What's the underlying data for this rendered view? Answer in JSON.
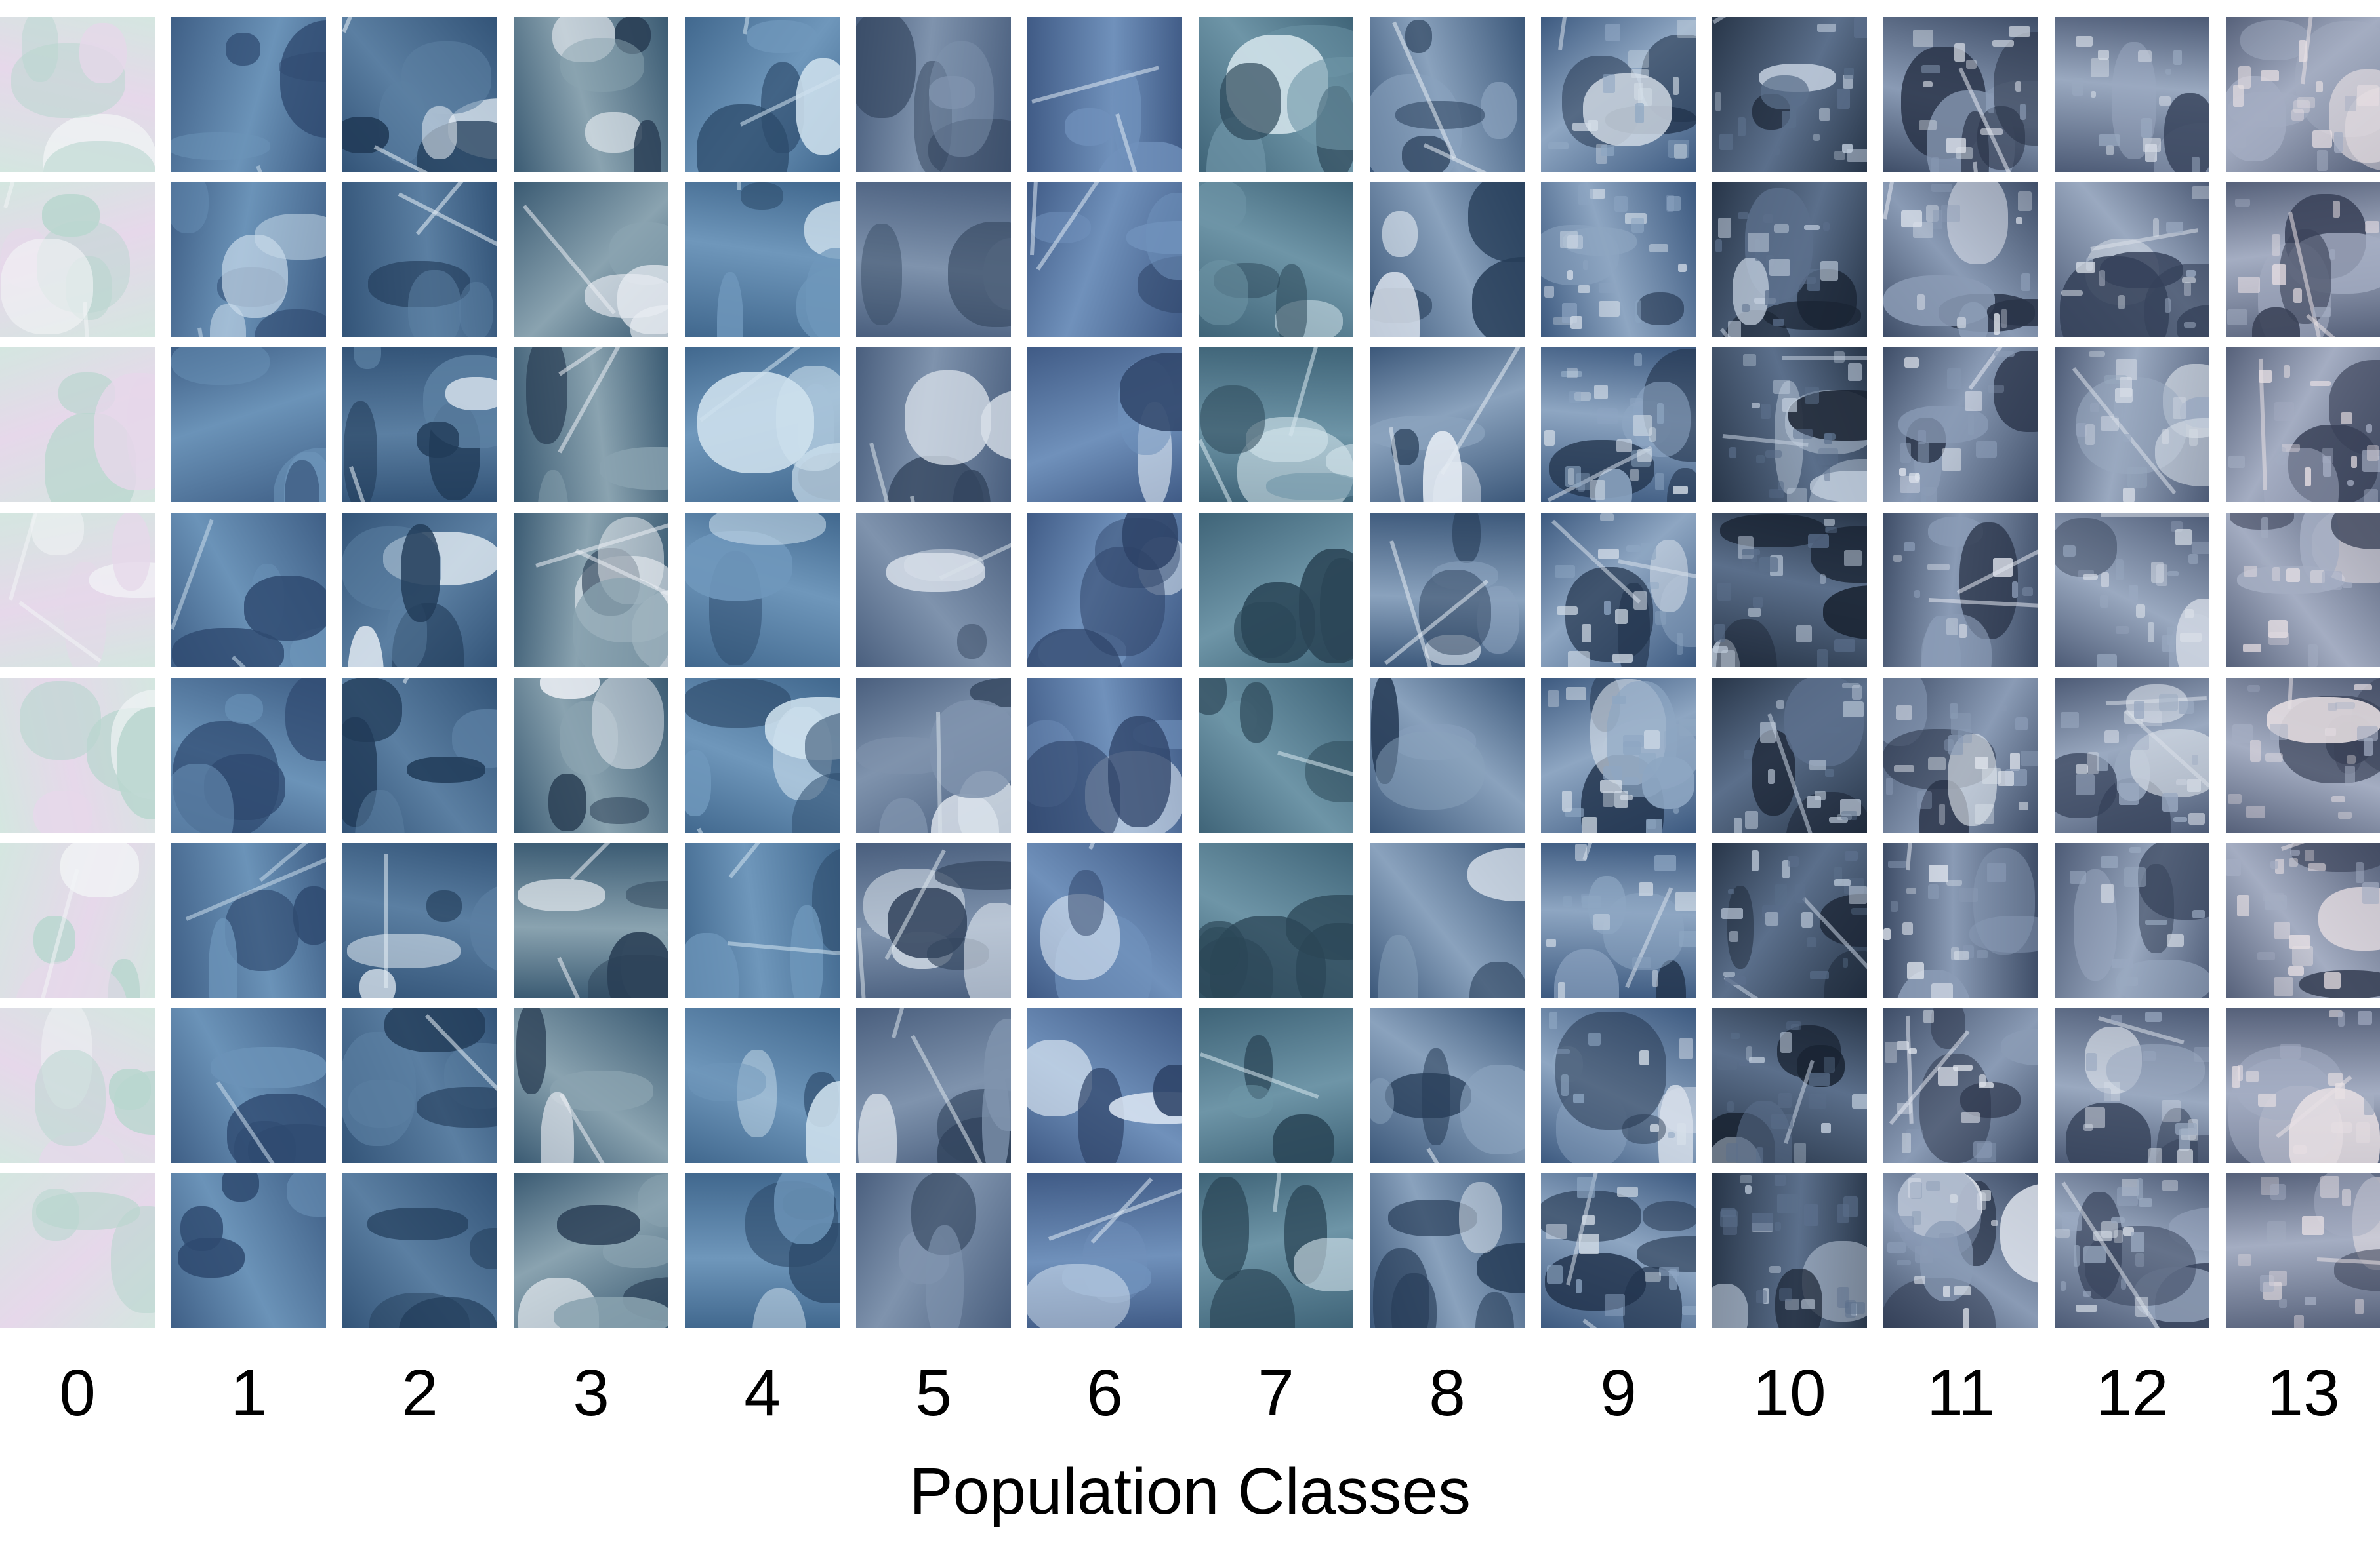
{
  "figure": {
    "axis_title": "Population Classes",
    "class_labels": [
      "0",
      "1",
      "2",
      "3",
      "4",
      "5",
      "6",
      "7",
      "8",
      "9",
      "10",
      "11",
      "12",
      "13"
    ],
    "rows_per_class": 8,
    "tile_content": "satellite image patches"
  },
  "class_palettes": [
    {
      "base": "#d4e6e0",
      "accent": "#e6d8ea",
      "feature": "#b9d6cf",
      "detail": "#f2f4f6"
    },
    {
      "base": "#3f5f86",
      "accent": "#6b93b8",
      "feature": "#2f4a70",
      "detail": "#c9dbea"
    },
    {
      "base": "#335478",
      "accent": "#5b7fa2",
      "feature": "#213b58",
      "detail": "#e6eef5"
    },
    {
      "base": "#3b5b73",
      "accent": "#8aa3b0",
      "feature": "#2a3f55",
      "detail": "#e9edf2"
    },
    {
      "base": "#41688e",
      "accent": "#6f97bb",
      "feature": "#2d4b6b",
      "detail": "#cfe1ee"
    },
    {
      "base": "#4a5f7e",
      "accent": "#7f93ad",
      "feature": "#34465f",
      "detail": "#d9e1ea"
    },
    {
      "base": "#405b86",
      "accent": "#7091bb",
      "feature": "#2e4368",
      "detail": "#dce7f3"
    },
    {
      "base": "#3f6478",
      "accent": "#6e95a7",
      "feature": "#2b4657",
      "detail": "#d5e5ec"
    },
    {
      "base": "#3c587a",
      "accent": "#8aa2bd",
      "feature": "#273d58",
      "detail": "#e4ebf3"
    },
    {
      "base": "#3d5a80",
      "accent": "#8ea6c2",
      "feature": "#22344d",
      "detail": "#d6dfe9"
    },
    {
      "base": "#283649",
      "accent": "#5b6f8b",
      "feature": "#1a2433",
      "detail": "#c4d0df"
    },
    {
      "base": "#3f4e68",
      "accent": "#8a9bb5",
      "feature": "#2a3449",
      "detail": "#e1e6ee"
    },
    {
      "base": "#4d5b76",
      "accent": "#9aa9c0",
      "feature": "#36425a",
      "detail": "#d9dfe8"
    },
    {
      "base": "#56617a",
      "accent": "#a4adc2",
      "feature": "#3a4258",
      "detail": "#e8e0e4"
    }
  ]
}
